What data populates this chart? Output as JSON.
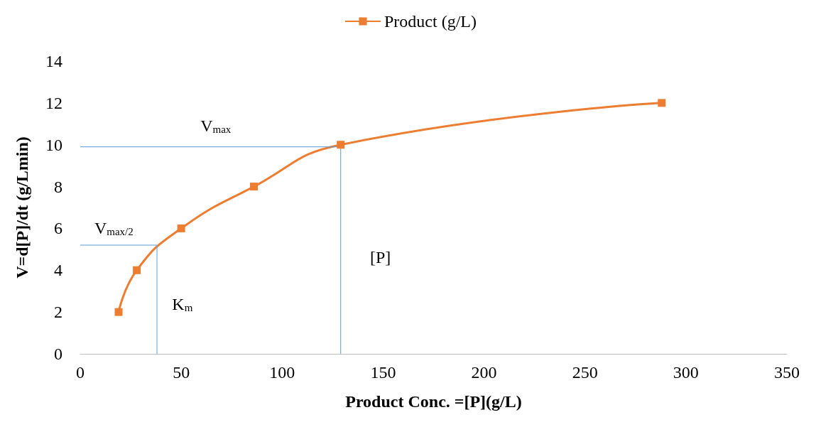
{
  "chart_data": {
    "type": "line",
    "xlabel": "Product Conc. =[P](g/L)",
    "ylabel": "V=d[P]/dt (g/Lmin)",
    "xlim": [
      0,
      350
    ],
    "xticks": [
      0,
      50,
      100,
      150,
      200,
      250,
      300,
      350
    ],
    "ylim": [
      0,
      14
    ],
    "yticks": [
      0,
      2,
      4,
      6,
      8,
      10,
      12,
      14
    ],
    "grid": false,
    "legend": "top",
    "marker": "square",
    "line_style": "solid",
    "series": [
      {
        "name": "Product (g/L)",
        "color": "#ed7d31",
        "x": [
          19,
          28,
          50,
          86,
          129,
          288
        ],
        "values": [
          2,
          4,
          6,
          8,
          10,
          12
        ]
      },
      {
        "type": "line",
        "marker": "none",
        "color": "#5b9bd5",
        "x": [
          0,
          129,
          129
        ],
        "values": [
          9.9,
          9.9,
          0
        ]
      },
      {
        "type": "line",
        "marker": "none",
        "color": "#5b9bd5",
        "x": [
          0,
          38,
          38
        ],
        "values": [
          5.2,
          5.2,
          0
        ]
      }
    ],
    "annotations": [
      "V$_{max}$",
      "V$_{max/2}$",
      "K$_{m}$",
      "[P]"
    ]
  }
}
